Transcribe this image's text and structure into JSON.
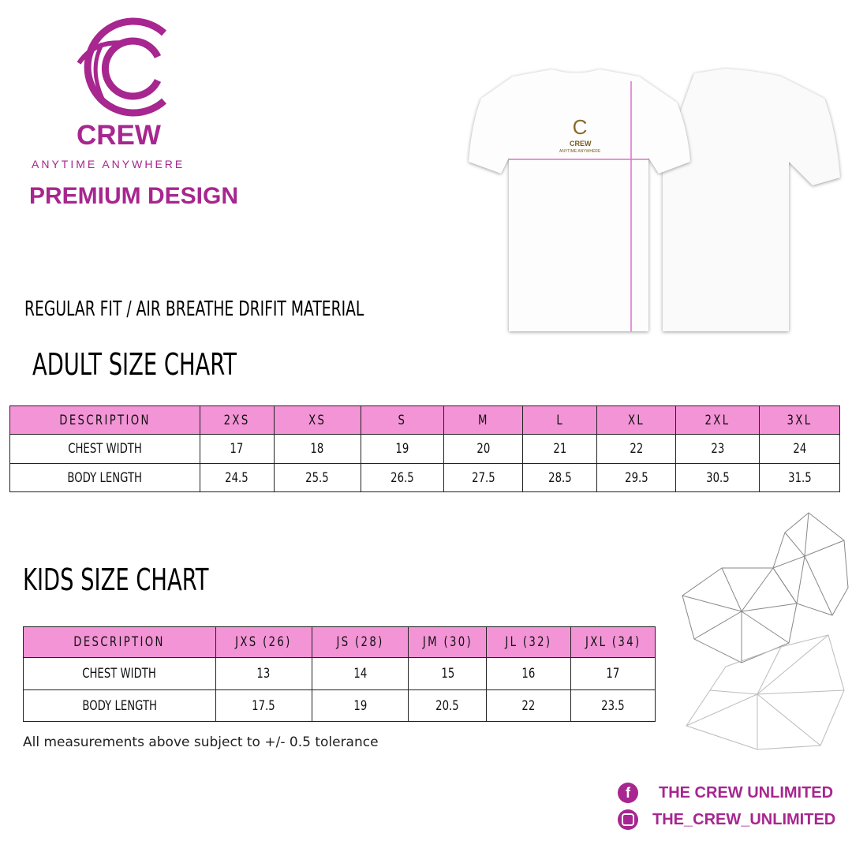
{
  "brand": {
    "logo_letter": "C",
    "name": "CREW",
    "tagline": "ANYTIME ANYWHERE",
    "headline": "PREMIUM DESIGN",
    "color": "#a7268f"
  },
  "material": "REGULAR FIT / AIR BREATHE DRIFIT MATERIAL",
  "shirt_print": {
    "name": "CREW",
    "tagline": "ANYTIME ANYWHERE"
  },
  "adult": {
    "title": "ADULT SIZE CHART",
    "header": [
      "DESCRIPTION",
      "2XS",
      "XS",
      "S",
      "M",
      "L",
      "XL",
      "2XL",
      "3XL"
    ],
    "rows": [
      [
        "CHEST WIDTH",
        "17",
        "18",
        "19",
        "20",
        "21",
        "22",
        "23",
        "24"
      ],
      [
        "BODY LENGTH",
        "24.5",
        "25.5",
        "26.5",
        "27.5",
        "28.5",
        "29.5",
        "30.5",
        "31.5"
      ]
    ]
  },
  "kids": {
    "title": "KIDS SIZE CHART",
    "header": [
      "DESCRIPTION",
      "JXS (26)",
      "JS (28)",
      "JM (30)",
      "JL (32)",
      "JXL (34)"
    ],
    "rows": [
      [
        "CHEST WIDTH",
        "13",
        "14",
        "15",
        "16",
        "17"
      ],
      [
        "BODY LENGTH",
        "17.5",
        "19",
        "20.5",
        "22",
        "23.5"
      ]
    ]
  },
  "note": "All measurements above subject to +/- 0.5 tolerance",
  "social": [
    {
      "icon": "facebook-icon",
      "label": "THE CREW UNLIMITED"
    },
    {
      "icon": "instagram-icon",
      "label": "THE_CREW_UNLIMITED"
    }
  ],
  "colors": {
    "header_fill": "#f394d6",
    "measure_line": "#e070c8"
  }
}
